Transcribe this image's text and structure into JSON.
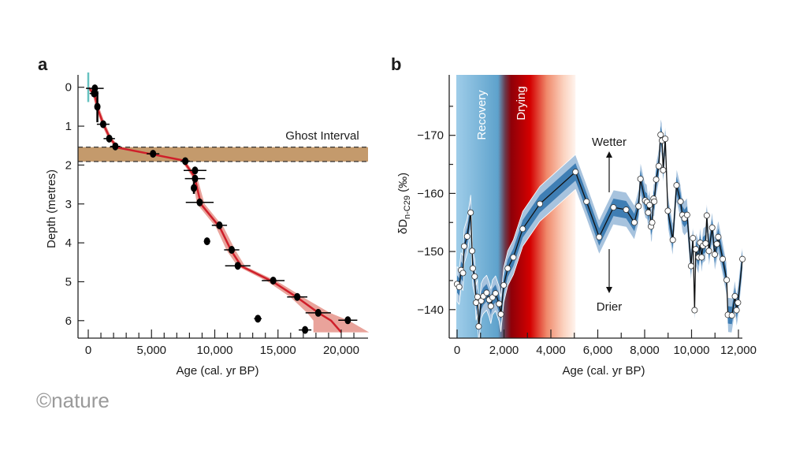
{
  "logo": "©nature",
  "chart_data": [
    {
      "panel_label": "a",
      "type": "scatter",
      "xlabel": "Age (cal. yr BP)",
      "ylabel": "Depth (metres)",
      "xlim": [
        -700,
        22000
      ],
      "ylim": [
        6.4,
        -0.3
      ],
      "xticks": [
        {
          "v": 0,
          "label": "0"
        },
        {
          "v": 5000,
          "label": "5,000"
        },
        {
          "v": 10000,
          "label": "10,000"
        },
        {
          "v": 15000,
          "label": "15,000"
        },
        {
          "v": 20000,
          "label": "20,000"
        }
      ],
      "yticks": [
        {
          "v": 0,
          "label": "0"
        },
        {
          "v": 1,
          "label": "1"
        },
        {
          "v": 2,
          "label": "2"
        },
        {
          "v": 3,
          "label": "3"
        },
        {
          "v": 4,
          "label": "4"
        },
        {
          "v": 5,
          "label": "5"
        },
        {
          "v": 6,
          "label": "6"
        }
      ],
      "annotation": {
        "text": "Ghost Interval",
        "depth_range": [
          1.54,
          1.91
        ]
      },
      "dated_samples": [
        {
          "age": 520,
          "depth": 0.03,
          "xerr": 700
        },
        {
          "age": 460,
          "depth": 0.16,
          "xerr": 350
        },
        {
          "age": 720,
          "depth": 0.5,
          "xerr": 80,
          "yerr": 0.4
        },
        {
          "age": 1180,
          "depth": 0.95,
          "xerr": 500
        },
        {
          "age": 1660,
          "depth": 1.32,
          "xerr": 450
        },
        {
          "age": 2140,
          "depth": 1.52,
          "xerr": 400
        },
        {
          "age": 5120,
          "depth": 1.71,
          "xerr": 500
        },
        {
          "age": 7670,
          "depth": 1.9,
          "xerr": 350
        },
        {
          "age": 8440,
          "depth": 2.14,
          "xerr": 900
        },
        {
          "age": 8440,
          "depth": 2.35,
          "xerr": 800
        },
        {
          "age": 8350,
          "depth": 2.59,
          "xerr": 150,
          "yerr": 0.15
        },
        {
          "age": 8810,
          "depth": 2.96,
          "xerr": 1100
        },
        {
          "age": 10370,
          "depth": 3.55,
          "xerr": 600
        },
        {
          "age": 9390,
          "depth": 3.96,
          "xerr": 250
        },
        {
          "age": 11340,
          "depth": 4.18,
          "xerr": 600
        },
        {
          "age": 11820,
          "depth": 4.59,
          "xerr": 1000
        },
        {
          "age": 14620,
          "depth": 4.97,
          "xerr": 900
        },
        {
          "age": 16520,
          "depth": 5.39,
          "xerr": 800
        },
        {
          "age": 18180,
          "depth": 5.8,
          "xerr": 1000
        },
        {
          "age": 13410,
          "depth": 5.95,
          "xerr": 300
        },
        {
          "age": 20520,
          "depth": 5.99,
          "xerr": 750
        },
        {
          "age": 17140,
          "depth": 6.24,
          "xerr": 500
        }
      ],
      "age_model": [
        {
          "age": 0,
          "depth": 0,
          "unc": 150
        },
        {
          "age": 500,
          "depth": 0.2,
          "unc": 150
        },
        {
          "age": 800,
          "depth": 0.6,
          "unc": 150
        },
        {
          "age": 1200,
          "depth": 0.95,
          "unc": 150
        },
        {
          "age": 1700,
          "depth": 1.3,
          "unc": 150
        },
        {
          "age": 2300,
          "depth": 1.55,
          "unc": 200
        },
        {
          "age": 5000,
          "depth": 1.72,
          "unc": 300
        },
        {
          "age": 7500,
          "depth": 1.88,
          "unc": 150
        },
        {
          "age": 8400,
          "depth": 2.3,
          "unc": 200
        },
        {
          "age": 8900,
          "depth": 3.0,
          "unc": 300
        },
        {
          "age": 10400,
          "depth": 3.6,
          "unc": 300
        },
        {
          "age": 11300,
          "depth": 4.2,
          "unc": 350
        },
        {
          "age": 12100,
          "depth": 4.6,
          "unc": 300
        },
        {
          "age": 14600,
          "depth": 5.0,
          "unc": 400
        },
        {
          "age": 16500,
          "depth": 5.4,
          "unc": 500
        },
        {
          "age": 18200,
          "depth": 5.8,
          "unc": 900
        },
        {
          "age": 19200,
          "depth": 6.0,
          "unc": 1400
        },
        {
          "age": 20000,
          "depth": 6.3,
          "unc": 2200
        }
      ],
      "colors": {
        "model": "#cf1f2a",
        "model_band": "#e9a39b",
        "ghost": "#c49a6c",
        "surface": "#66c2c0"
      }
    },
    {
      "panel_label": "b",
      "type": "line",
      "xlabel": "Age (cal. yr BP)",
      "ylabel_main": "δD",
      "ylabel_sub": "n-C29",
      "ylabel_unit": " (‰)",
      "xlim": [
        -350,
        12300
      ],
      "ylim": [
        -137,
        -182
      ],
      "xticks": [
        {
          "v": 0,
          "label": "0"
        },
        {
          "v": 2000,
          "label": "2,000"
        },
        {
          "v": 4000,
          "label": "4,000"
        },
        {
          "v": 6000,
          "label": "6,000"
        },
        {
          "v": 8000,
          "label": "8,000"
        },
        {
          "v": 10000,
          "label": "10,000"
        },
        {
          "v": 12000,
          "label": "12,000"
        }
      ],
      "yticks": [
        {
          "v": -170,
          "label": "−170"
        },
        {
          "v": -160,
          "label": "−160"
        },
        {
          "v": -150,
          "label": "−150"
        },
        {
          "v": -140,
          "label": "−140"
        }
      ],
      "phases": [
        {
          "label": "Recovery",
          "range": [
            0,
            1900
          ]
        },
        {
          "label": "Drying",
          "range": [
            1900,
            5050
          ]
        }
      ],
      "annotations": [
        {
          "text": "Wetter",
          "direction": "up"
        },
        {
          "text": "Drier",
          "direction": "down"
        }
      ],
      "band_halfwidth": {
        "inner": 1.5,
        "outer": 3
      },
      "series": [
        {
          "name": "δD n-C29",
          "points": [
            [
              0,
              -144.4
            ],
            [
              90,
              -143.9
            ],
            [
              170,
              -146.8
            ],
            [
              250,
              -146.3
            ],
            [
              300,
              -150.9
            ],
            [
              430,
              -152.6
            ],
            [
              580,
              -156.7
            ],
            [
              640,
              -150.1
            ],
            [
              670,
              -147.1
            ],
            [
              750,
              -145.7
            ],
            [
              810,
              -141.2
            ],
            [
              870,
              -142.2
            ],
            [
              920,
              -137.1
            ],
            [
              1030,
              -141.5
            ],
            [
              1120,
              -142.3
            ],
            [
              1260,
              -142.9
            ],
            [
              1370,
              -141.7
            ],
            [
              1440,
              -140.6
            ],
            [
              1510,
              -142.1
            ],
            [
              1640,
              -142.8
            ],
            [
              1790,
              -141.0
            ],
            [
              1870,
              -139.2
            ],
            [
              1990,
              -144.2
            ],
            [
              2160,
              -147.1
            ],
            [
              2400,
              -149.0
            ],
            [
              2800,
              -153.9
            ],
            [
              3530,
              -158.2
            ],
            [
              5050,
              -163.7
            ],
            [
              5520,
              -158.6
            ],
            [
              6060,
              -152.5
            ],
            [
              6670,
              -157.6
            ],
            [
              7210,
              -157.2
            ],
            [
              7560,
              -155.0
            ],
            [
              7740,
              -157.8
            ],
            [
              7820,
              -162.5
            ],
            [
              8020,
              -158.8
            ],
            [
              8100,
              -158.5
            ],
            [
              8150,
              -156.7
            ],
            [
              8210,
              -158.0
            ],
            [
              8270,
              -154.3
            ],
            [
              8320,
              -155.0
            ],
            [
              8380,
              -159.1
            ],
            [
              8410,
              -158.6
            ],
            [
              8490,
              -162.4
            ],
            [
              8600,
              -164.7
            ],
            [
              8680,
              -170.1
            ],
            [
              8740,
              -169.1
            ],
            [
              8790,
              -164.0
            ],
            [
              8880,
              -169.4
            ],
            [
              8990,
              -157.0
            ],
            [
              9200,
              -152.0
            ],
            [
              9360,
              -161.4
            ],
            [
              9530,
              -158.6
            ],
            [
              9610,
              -156.3
            ],
            [
              9700,
              -155.7
            ],
            [
              9810,
              -156.3
            ],
            [
              9980,
              -147.5
            ],
            [
              10060,
              -152.3
            ],
            [
              10130,
              -139.9
            ],
            [
              10180,
              -150.4
            ],
            [
              10300,
              -149.0
            ],
            [
              10370,
              -151.5
            ],
            [
              10430,
              -149.0
            ],
            [
              10490,
              -151.0
            ],
            [
              10600,
              -151.4
            ],
            [
              10650,
              -156.2
            ],
            [
              10740,
              -150.1
            ],
            [
              10880,
              -154.1
            ],
            [
              10990,
              -149.5
            ],
            [
              11080,
              -151.3
            ],
            [
              11140,
              -152.5
            ],
            [
              11330,
              -148.7
            ],
            [
              11500,
              -145.1
            ],
            [
              11550,
              -139.1
            ],
            [
              11720,
              -139.0
            ],
            [
              11850,
              -142.3
            ],
            [
              11920,
              -139.9
            ],
            [
              11980,
              -141.2
            ],
            [
              12170,
              -148.7
            ]
          ]
        }
      ],
      "colors": {
        "inner_band": "#3f7eb4",
        "outer_band": "#a7c3de",
        "line": "#111111"
      }
    }
  ]
}
